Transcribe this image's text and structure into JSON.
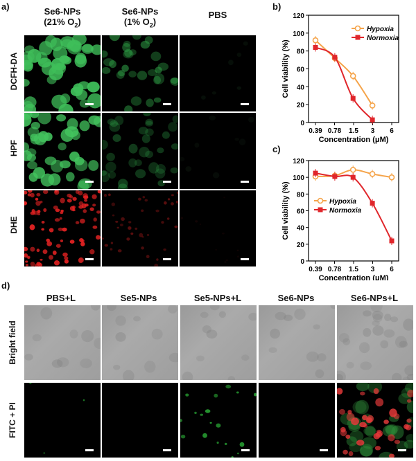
{
  "panels": {
    "a": "a)",
    "b": "b)",
    "c": "c)",
    "d": "d)"
  },
  "panel_a": {
    "columns": [
      {
        "line1": "Se6-NPs",
        "line2": "(21% O",
        "sub": "2",
        "close": ")"
      },
      {
        "line1": "Se6-NPs",
        "line2": "(1% O",
        "sub": "2",
        "close": ")"
      },
      {
        "line1": "PBS",
        "line2": "",
        "sub": "",
        "close": ""
      }
    ],
    "rows": [
      "DCFH-DA",
      "HPF",
      "DHE"
    ]
  },
  "panel_d": {
    "columns": [
      "PBS+L",
      "Se5-NPs",
      "Se5-NPs+L",
      "Se6-NPs",
      "Se6-NPs+L"
    ],
    "rows": [
      "Bright field",
      "FITC + PI"
    ]
  },
  "chart_data": [
    {
      "type": "line",
      "panel": "b",
      "xlabel": "Concentration (μM)",
      "ylabel": "Cell viability (%)",
      "x": [
        "0.39",
        "0.78",
        "1.5",
        "3",
        "6"
      ],
      "ylim": [
        0,
        120
      ],
      "yticks": [
        "0",
        "20",
        "40",
        "60",
        "80",
        "100",
        "120"
      ],
      "legend_position": "top-right",
      "series": [
        {
          "name": "Hypoxia",
          "color": "#f5a44a",
          "marker": "circle-open",
          "x": [
            0.39,
            0.78,
            1.5,
            3
          ],
          "values": [
            92,
            72,
            52,
            19
          ]
        },
        {
          "name": "Normoxia",
          "color": "#e0262b",
          "marker": "square",
          "x": [
            0.39,
            0.78,
            1.5,
            3
          ],
          "values": [
            84,
            73,
            27,
            3
          ]
        }
      ]
    },
    {
      "type": "line",
      "panel": "c",
      "xlabel": "Concentration (μM)",
      "ylabel": "Cell viability (%)",
      "x": [
        "0.39",
        "0.78",
        "1.5",
        "3",
        "6"
      ],
      "ylim": [
        0,
        120
      ],
      "yticks": [
        "0",
        "20",
        "40",
        "60",
        "80",
        "100",
        "120"
      ],
      "legend_position": "left",
      "series": [
        {
          "name": "Hypoxia",
          "color": "#f5a44a",
          "marker": "circle-open",
          "x": [
            0.39,
            0.78,
            1.5,
            3,
            6
          ],
          "values": [
            101,
            102,
            109,
            104,
            100
          ]
        },
        {
          "name": "Normoxia",
          "color": "#e0262b",
          "marker": "square",
          "x": [
            0.39,
            0.78,
            1.5,
            3,
            6
          ],
          "values": [
            105,
            101,
            100,
            69,
            24
          ]
        }
      ]
    }
  ]
}
